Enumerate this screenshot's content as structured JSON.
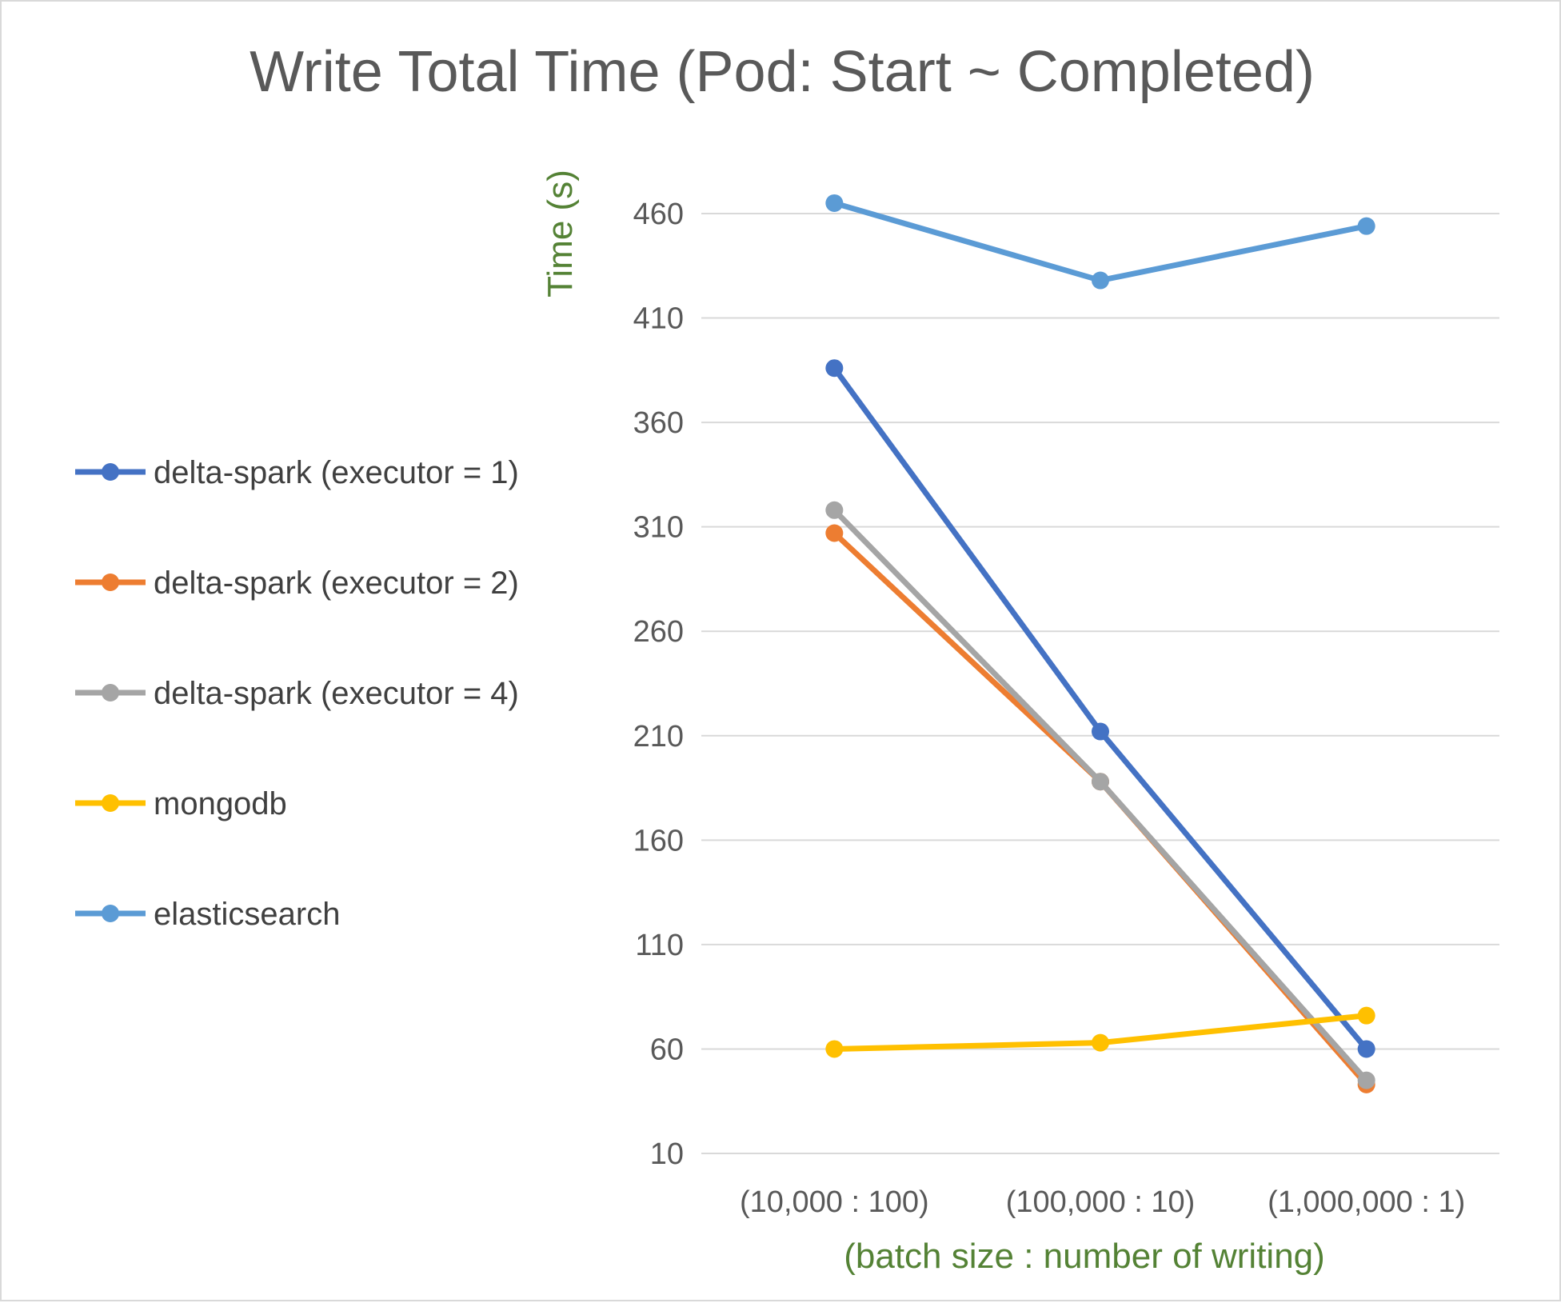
{
  "chart_data": {
    "type": "line",
    "title": "Write Total Time (Pod: Start ~ Completed)",
    "xlabel": "(batch size : number of writing)",
    "ylabel": "Time (s)",
    "categories": [
      "(10,000 : 100)",
      "(100,000 : 10)",
      "(1,000,000 : 1)"
    ],
    "ylim": [
      10,
      460
    ],
    "yticks": [
      10,
      60,
      110,
      160,
      210,
      260,
      310,
      360,
      410,
      460
    ],
    "grid": true,
    "legend_position": "left",
    "series": [
      {
        "name": "delta-spark (executor = 1)",
        "color": "#4472C4",
        "values": [
          386,
          212,
          60
        ]
      },
      {
        "name": "delta-spark (executor = 2)",
        "color": "#ED7D31",
        "values": [
          307,
          188,
          43
        ]
      },
      {
        "name": "delta-spark (executor = 4)",
        "color": "#A5A5A5",
        "values": [
          318,
          188,
          45
        ]
      },
      {
        "name": "mongodb",
        "color": "#FFC000",
        "values": [
          60,
          63,
          76
        ]
      },
      {
        "name": "elasticsearch",
        "color": "#5B9BD5",
        "values": [
          465,
          428,
          454
        ]
      }
    ]
  }
}
